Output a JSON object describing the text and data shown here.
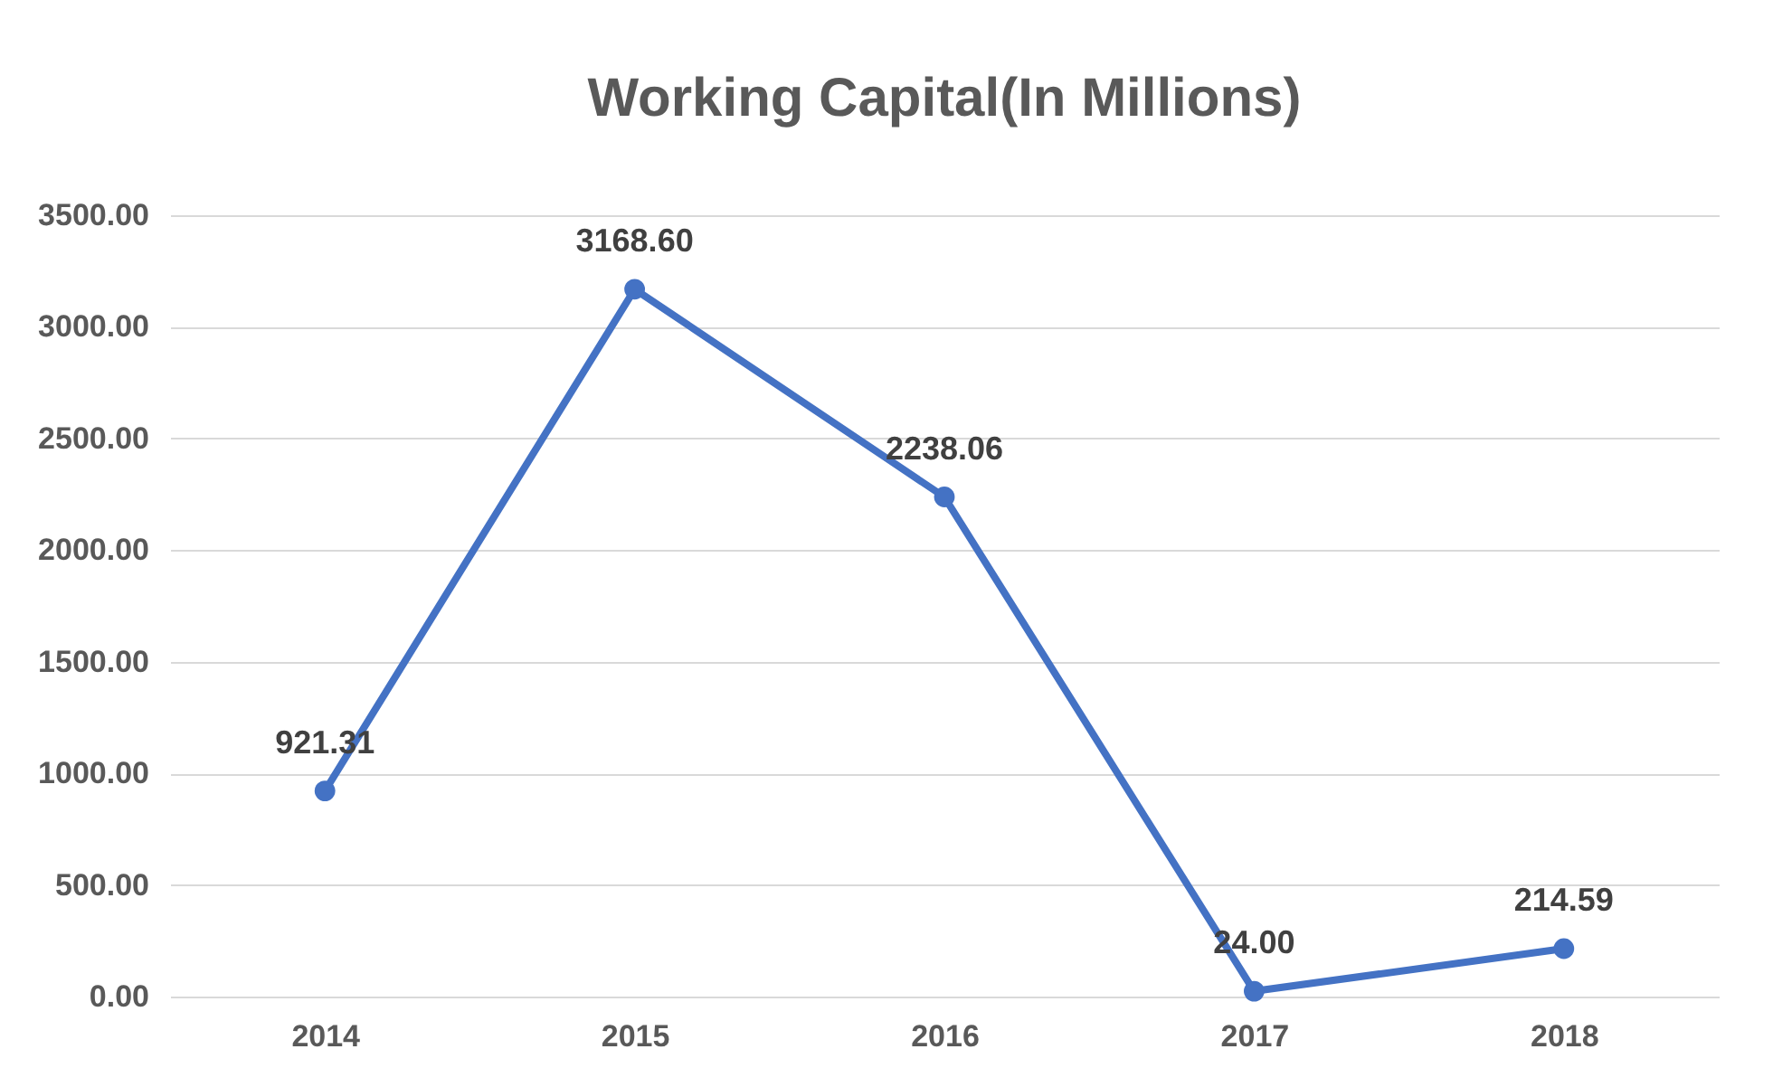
{
  "chart_data": {
    "type": "line",
    "title": "Working Capital(In Millions)",
    "categories": [
      "2014",
      "2015",
      "2016",
      "2017",
      "2018"
    ],
    "series": [
      {
        "color": "#4472c4",
        "values": [
          921.31,
          3168.6,
          2238.06,
          24.0,
          214.59
        ],
        "value_labels": [
          "921.31",
          "3168.60",
          "2238.06",
          "24.00",
          "214.59"
        ]
      }
    ],
    "ylim": [
      0,
      3500
    ],
    "yticks": [
      {
        "value": 0,
        "label": "0.00"
      },
      {
        "value": 500,
        "label": "500.00"
      },
      {
        "value": 1000,
        "label": "1000.00"
      },
      {
        "value": 1500,
        "label": "1500.00"
      },
      {
        "value": 2000,
        "label": "2000.00"
      },
      {
        "value": 2500,
        "label": "2500.00"
      },
      {
        "value": 3000,
        "label": "3000.00"
      },
      {
        "value": 3500,
        "label": "3500.00"
      }
    ],
    "grid": "y",
    "marker": "circle",
    "line_style": "solid"
  }
}
